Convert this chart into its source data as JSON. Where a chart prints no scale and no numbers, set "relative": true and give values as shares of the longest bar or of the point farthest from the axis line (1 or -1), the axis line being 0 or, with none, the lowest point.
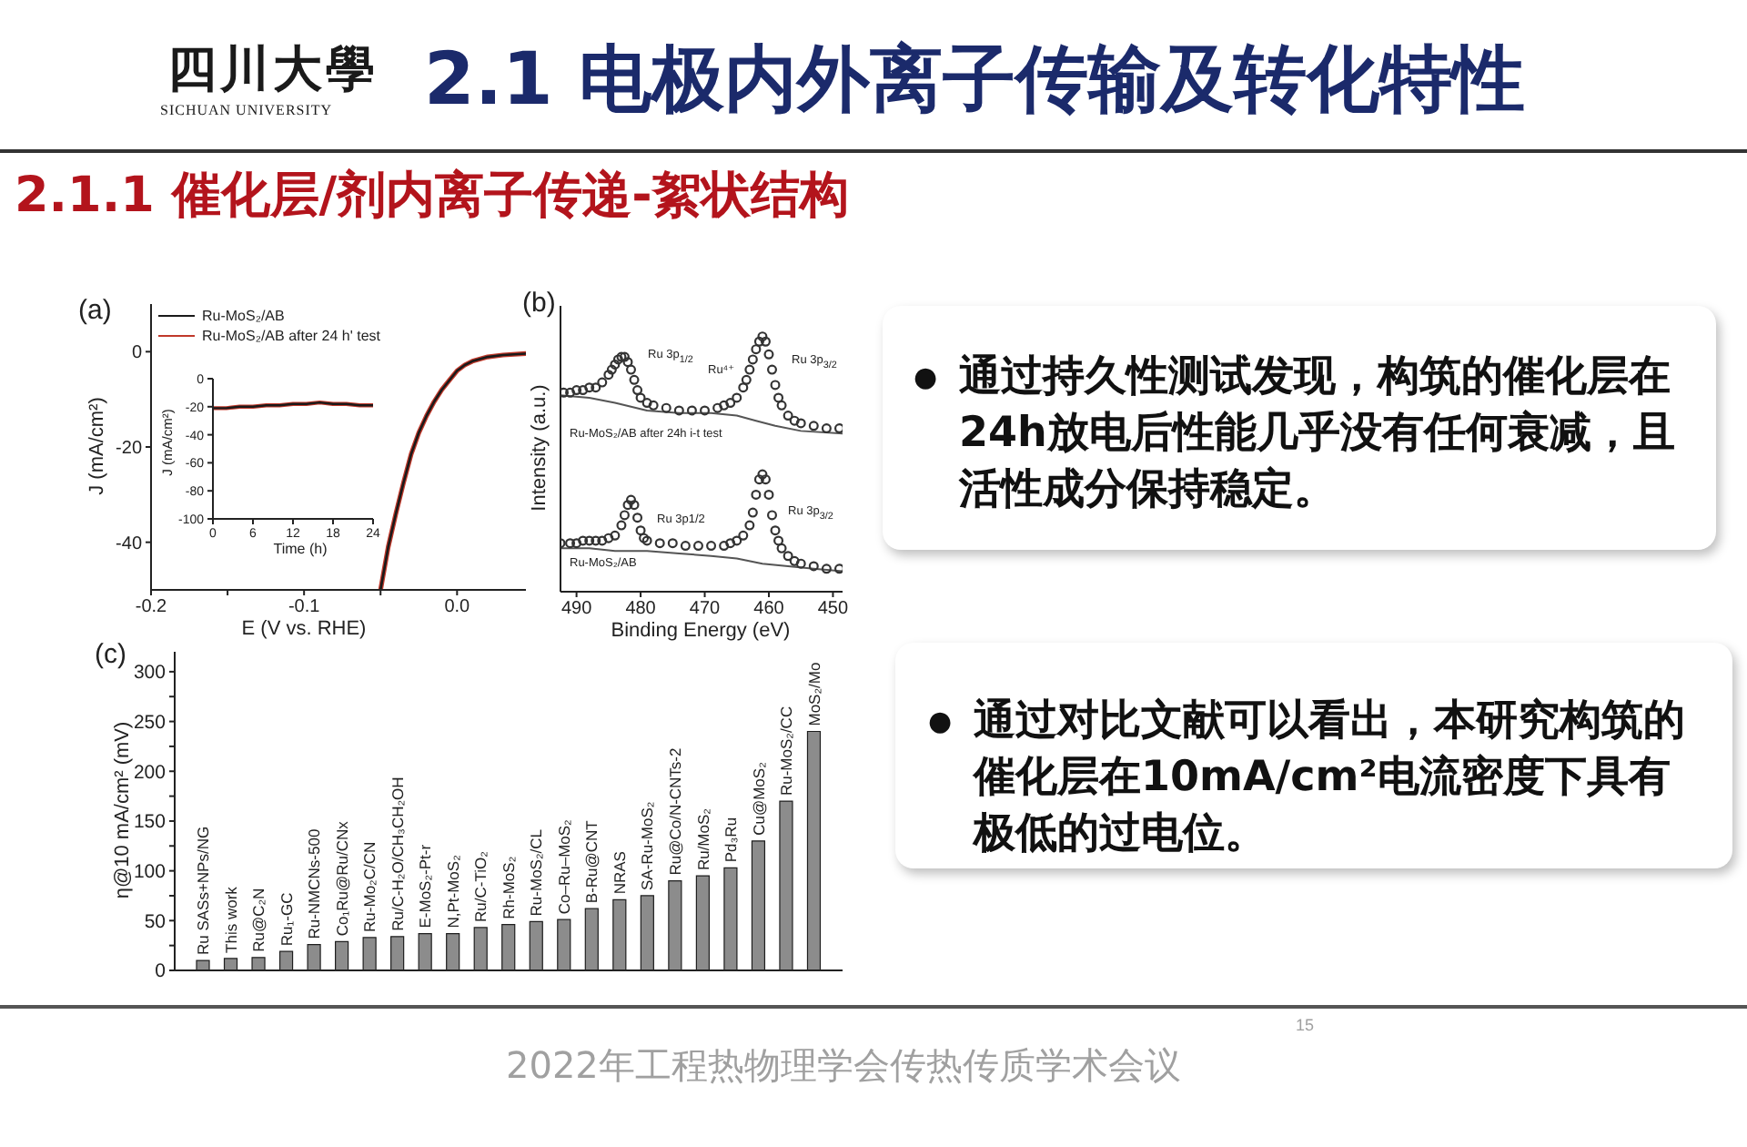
{
  "chart_data": [
    {
      "type": "other",
      "title": "2.1 电极内外离子传输及转化特性",
      "subtitle": "2.1.1 催化层/剂内离子传递-絮状结构",
      "annotations": [
        "四川大學",
        "SICHUAN UNIVERSITY",
        "●",
        "通过持久性测试发现，构筑的催化层在24h放电后性能几乎没有任何衰减，且活性成分保持稳定。",
        "●",
        "通过对比文献可以看出，本研究构筑的催化层在10mA/cm²电流密度下具有极低的过电位。",
        "2022年工程热物理学会传热传质学术会议",
        "15"
      ]
    },
    {
      "type": "line",
      "title": "(a)",
      "xlabel": "E (V vs. RHE)",
      "ylabel": "J (mA/cm²)",
      "x": [
        -0.05,
        -0.045,
        -0.04,
        -0.035,
        -0.03,
        -0.025,
        -0.02,
        -0.015,
        -0.01,
        -0.005,
        0,
        0.005,
        0.01,
        0.02,
        0.03,
        0.045
      ],
      "series": [
        {
          "name": "Ru-MoS₂/AB",
          "color": "#1a1a1a",
          "values": [
            -50,
            -41,
            -34,
            -27.5,
            -21.5,
            -17,
            -13.5,
            -10.5,
            -8,
            -6,
            -4,
            -2.8,
            -2,
            -1.1,
            -0.7,
            -0.4
          ]
        },
        {
          "name": "Ru-MoS₂/AB after 24 h' test",
          "color": "#c0392b",
          "values": [
            -50,
            -41,
            -34,
            -27.5,
            -21.5,
            -17,
            -13.5,
            -10.5,
            -8,
            -6,
            -4,
            -2.8,
            -2,
            -1.1,
            -0.7,
            -0.4
          ]
        }
      ],
      "xlim": [
        -0.2,
        0.045
      ],
      "xticks": [
        -0.2,
        {
          "value": -0.15,
          "label": null
        },
        -0.1,
        {
          "value": -0.05,
          "label": null
        },
        {
          "value": 0,
          "label": "0.0"
        }
      ],
      "ylim": [
        -50,
        10
      ],
      "yticks": [
        -40,
        -20,
        0
      ],
      "legend": "top left"
    },
    {
      "type": "line",
      "xlabel": "Time (h)",
      "ylabel": "J (mA/cm²)",
      "x": [
        0,
        2,
        4,
        6,
        8,
        10,
        12,
        14,
        16,
        18,
        20,
        22,
        24
      ],
      "series": [
        {
          "color": "#1a1a1a",
          "values": [
            -21,
            -21,
            -20,
            -20,
            -19,
            -19,
            -18,
            -18,
            -17,
            -18,
            -18,
            -19,
            -19
          ]
        },
        {
          "color": "#c0392b",
          "values": [
            -21,
            -21,
            -20,
            -20,
            -19,
            -19,
            -18,
            -18,
            -17,
            -18,
            -18,
            -19,
            -19
          ]
        }
      ],
      "xlim": [
        0,
        24
      ],
      "xticks": [
        0,
        6,
        12,
        18,
        24
      ],
      "ylim": [
        -100,
        0
      ],
      "yticks": [
        -100,
        -80,
        -60,
        -40,
        -20,
        0
      ]
    },
    {
      "type": "line",
      "title": "(b)",
      "xlabel": "Binding Energy (eV)",
      "ylabel": "Intensity (a.u.)",
      "relative": true,
      "xlim": [
        492.5,
        448.5
      ],
      "xticks": [
        490,
        480,
        470,
        460,
        450
      ],
      "series": [
        {
          "type": "scatter",
          "color": "#333333",
          "x": [
            492,
            491,
            490,
            489,
            488,
            487,
            486,
            485,
            484.5,
            484,
            483.5,
            483,
            482.5,
            482,
            481.5,
            481,
            480.5,
            480,
            479,
            478,
            476,
            474,
            472,
            470,
            468,
            467,
            466,
            465,
            464,
            463.5,
            463,
            462.5,
            462,
            461.5,
            461,
            460.5,
            460,
            459.5,
            459,
            458.5,
            458,
            457,
            456,
            455,
            453,
            451,
            449
          ],
          "values": [
            0.78,
            0.78,
            0.79,
            0.79,
            0.8,
            0.8,
            0.82,
            0.85,
            0.87,
            0.89,
            0.91,
            0.92,
            0.92,
            0.9,
            0.87,
            0.83,
            0.79,
            0.76,
            0.74,
            0.73,
            0.72,
            0.71,
            0.71,
            0.71,
            0.72,
            0.73,
            0.74,
            0.76,
            0.8,
            0.83,
            0.87,
            0.91,
            0.95,
            0.98,
            1,
            0.98,
            0.93,
            0.87,
            0.81,
            0.76,
            0.73,
            0.69,
            0.67,
            0.66,
            0.65,
            0.64,
            0.64
          ]
        },
        {
          "color": "#555555",
          "x": [
            492.5,
            488,
            484,
            479,
            474,
            469,
            465,
            462,
            459,
            455,
            448.5
          ],
          "values": [
            0.77,
            0.76,
            0.74,
            0.71,
            0.7,
            0.7,
            0.69,
            0.67,
            0.65,
            0.63,
            0.62
          ]
        },
        {
          "type": "scatter",
          "color": "#333333",
          "x": [
            492.5,
            491,
            490,
            489,
            488,
            487,
            486,
            485,
            484,
            483,
            482.5,
            482,
            481.5,
            481,
            480.5,
            480,
            479.5,
            479,
            477,
            475,
            473,
            471,
            469,
            467,
            466,
            465,
            464,
            463,
            462.5,
            462,
            461.5,
            461,
            460.5,
            460,
            459.5,
            459,
            458.5,
            458,
            457,
            456,
            455,
            453,
            451,
            449
          ],
          "values": [
            0.19,
            0.19,
            0.19,
            0.2,
            0.2,
            0.2,
            0.2,
            0.21,
            0.22,
            0.26,
            0.3,
            0.34,
            0.36,
            0.34,
            0.29,
            0.24,
            0.21,
            0.2,
            0.19,
            0.19,
            0.18,
            0.18,
            0.18,
            0.18,
            0.19,
            0.2,
            0.22,
            0.26,
            0.31,
            0.38,
            0.44,
            0.46,
            0.44,
            0.38,
            0.3,
            0.24,
            0.2,
            0.17,
            0.14,
            0.12,
            0.11,
            0.1,
            0.09,
            0.09
          ]
        },
        {
          "color": "#555555",
          "x": [
            492.5,
            488,
            484,
            479,
            474,
            469,
            465,
            461,
            457,
            453,
            448.5
          ],
          "values": [
            0.17,
            0.17,
            0.16,
            0.16,
            0.15,
            0.14,
            0.13,
            0.11,
            0.1,
            0.09,
            0.08
          ]
        }
      ],
      "annotations": [
        "Ru 3p$_{1/2}$",
        "Ru⁴⁺",
        "Ru 3p$_{3/2}$",
        "Ru-MoS₂/AB after 24h i-t test",
        "Ru 3p1/2",
        "Ru 3p$_{3/2}$",
        "Ru-MoS₂/AB"
      ]
    },
    {
      "type": "bar",
      "title": "(c)",
      "ylabel": "η@10 mA/cm² (mV)",
      "categories": [
        "Ru SASs+NPs/NG",
        "This work",
        "Ru@C₂N",
        "Ru₁-GC",
        "Ru-NMCNs-500",
        "Co₁Ru@Ru/CNx",
        "Ru-Mo₂C/CN",
        "Ru/C-H₂O/CH₃CH₂OH",
        "E-MoS₂-Pt-r",
        "N,Pt-MoS₂",
        "Ru/C-TiO₂",
        "Rh-MoS₂",
        "Ru-MoS₂/CL",
        "Co–Ru–MoS₂",
        "B-Ru@CNT",
        "NRAS",
        "SA-Ru-MoS₂",
        "Ru@Co/N-CNTs-2",
        "Ru/MoS₂",
        "Pd₃Ru",
        "Cu@MoS₂",
        "Ru-MoS₂/CC",
        "MoS₂/Mo"
      ],
      "values": [
        10,
        12,
        13,
        19,
        26,
        29,
        33,
        34,
        37,
        37,
        43,
        46,
        49,
        51,
        62,
        71,
        75,
        90,
        95,
        103,
        130,
        170,
        240
      ],
      "color": "#8c8c8c",
      "ylim": [
        0,
        320
      ],
      "yticks": [
        0,
        {
          "value": 25,
          "label": null
        },
        50,
        {
          "value": 75,
          "label": null
        },
        100,
        {
          "value": 125,
          "label": null
        },
        150,
        {
          "value": 175,
          "label": null
        },
        200,
        {
          "value": 225,
          "label": null
        },
        250,
        {
          "value": 275,
          "label": null
        },
        300
      ]
    }
  ]
}
